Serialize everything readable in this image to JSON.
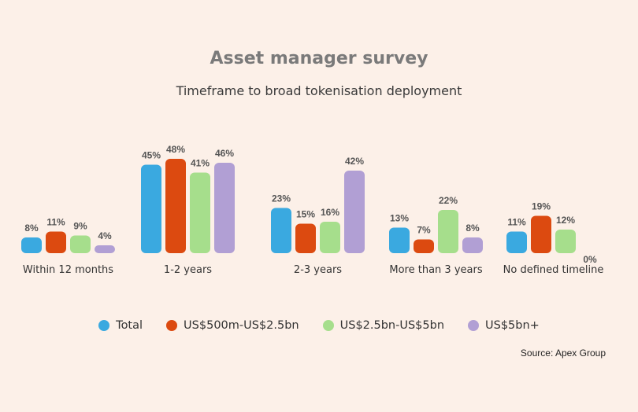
{
  "source": "Source: Apex Group",
  "chart_data": {
    "type": "bar",
    "title": "Asset manager survey",
    "subtitle": "Timeframe to broad tokenisation deployment",
    "categories": [
      "Within 12 months",
      "1-2 years",
      "2-3 years",
      "More than 3 years",
      "No defined timeline"
    ],
    "series": [
      {
        "name": "Total",
        "color": "#3aa9e0",
        "values": [
          8,
          45,
          23,
          13,
          11
        ]
      },
      {
        "name": "US$500m-US$2.5bn",
        "color": "#dc4a10",
        "values": [
          11,
          48,
          15,
          7,
          19
        ]
      },
      {
        "name": "US$2.5bn-US$5bn",
        "color": "#a6de8c",
        "values": [
          9,
          41,
          16,
          22,
          12
        ]
      },
      {
        "name": "US$5bn+",
        "color": "#b19fd4",
        "values": [
          4,
          46,
          42,
          8,
          0
        ]
      }
    ],
    "value_suffix": "%",
    "ylim": [
      0,
      50
    ],
    "grid": false,
    "legend_position": "bottom"
  }
}
